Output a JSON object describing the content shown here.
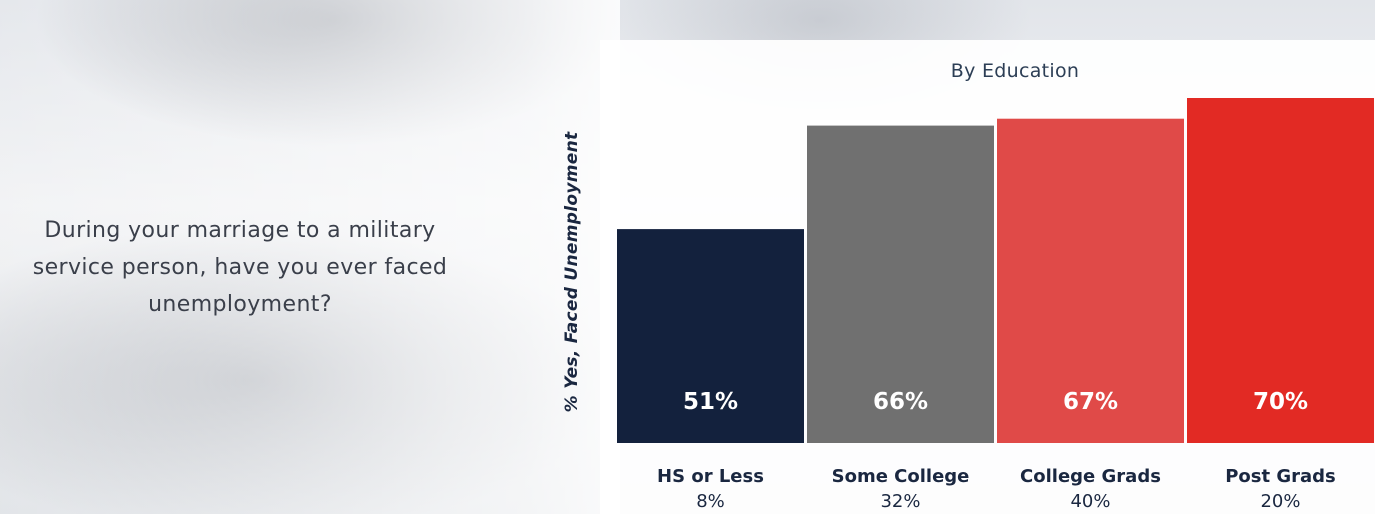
{
  "question": {
    "line1": "During your marriage to a military",
    "line2": "service person, have you ever faced",
    "line3": "unemployment?"
  },
  "chart_data": {
    "type": "bar",
    "title": "By Education",
    "ylabel": "% Yes, Faced Unemployment",
    "xlabel": "",
    "categories": [
      "HS or Less",
      "Some College",
      "College Grads",
      "Post Grads"
    ],
    "values": [
      51,
      66,
      67,
      70
    ],
    "value_labels": [
      "51%",
      "66%",
      "67%",
      "70%"
    ],
    "category_shares": [
      "8%",
      "32%",
      "40%",
      "20%"
    ],
    "ylim": [
      0,
      70
    ],
    "grid": false,
    "legend": "none",
    "colors": [
      "#13213d",
      "#707070",
      "#e04a48",
      "#e22a24"
    ]
  }
}
